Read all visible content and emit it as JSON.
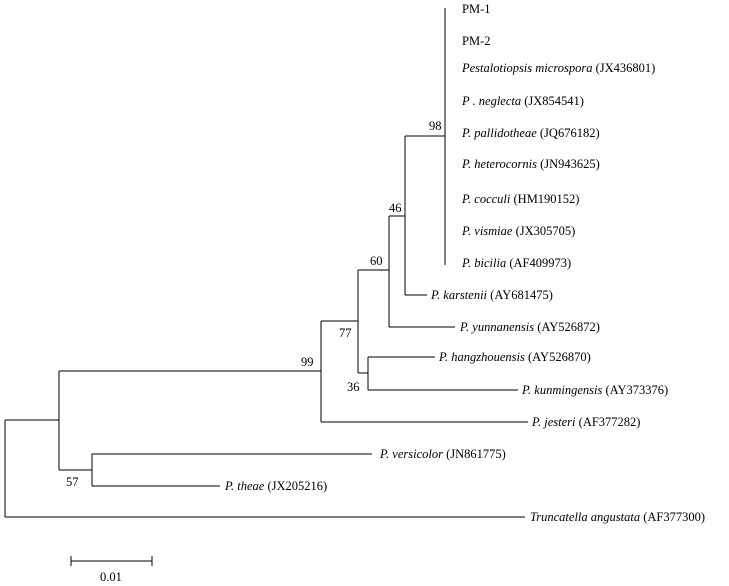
{
  "taxa": [
    {
      "italic": "",
      "plain": "PM-1"
    },
    {
      "italic": "",
      "plain": "PM-2"
    },
    {
      "italic": "Pestalotiopsis microspora",
      "plain": " (JX436801)"
    },
    {
      "italic": "P . neglecta",
      "plain": " (JX854541)"
    },
    {
      "italic": "P. pallidotheae",
      "plain": " (JQ676182)"
    },
    {
      "italic": "P. heterocornis",
      "plain": " (JN943625)"
    },
    {
      "italic": "P. cocculi",
      "plain": " (HM190152)"
    },
    {
      "italic": "P. vismiae",
      "plain": " (JX305705)"
    },
    {
      "italic": "P. bicilia",
      "plain": " (AF409973)"
    },
    {
      "italic": "P. karstenii",
      "plain": " (AY681475)"
    },
    {
      "italic": "P. yunnanensis",
      "plain": " (AY526872)"
    },
    {
      "italic": "P. hangzhouensis",
      "plain": " (AY526870)"
    },
    {
      "italic": "P. kunmingensis",
      "plain": " (AY373376)"
    },
    {
      "italic": "P. jesteri",
      "plain": " (AF377282)"
    },
    {
      "italic": "P. versicolor",
      "plain": " (JN861775)"
    },
    {
      "italic": "P. theae",
      "plain": " (JX205216)"
    },
    {
      "italic": "Truncatella angustata",
      "plain": " (AF377300)"
    }
  ],
  "bootstrap": [
    "98",
    "46",
    "60",
    "77",
    "99",
    "36",
    "57"
  ],
  "scale_bar": {
    "label": "0.01"
  }
}
